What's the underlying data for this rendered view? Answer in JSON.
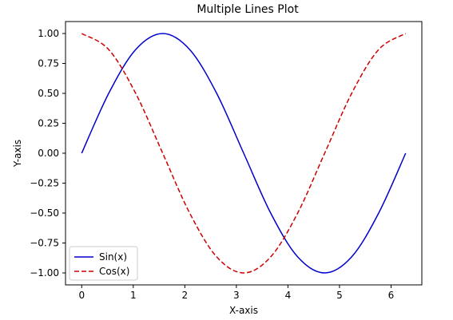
{
  "chart_data": {
    "type": "line",
    "title": "Multiple Lines Plot",
    "xlabel": "X-axis",
    "ylabel": "Y-axis",
    "xlim": [
      -0.314,
      6.597
    ],
    "ylim": [
      -1.1,
      1.1
    ],
    "x_ticks": [
      0,
      1,
      2,
      3,
      4,
      5,
      6
    ],
    "x_tick_labels": [
      "0",
      "1",
      "2",
      "3",
      "4",
      "5",
      "6"
    ],
    "y_ticks": [
      1.0,
      0.75,
      0.5,
      0.25,
      0.0,
      -0.25,
      -0.5,
      -0.75,
      -1.0
    ],
    "y_tick_labels": [
      "1.00",
      "0.75",
      "0.50",
      "0.25",
      "0.00",
      "−0.25",
      "−0.50",
      "−0.75",
      "−1.00"
    ],
    "grid": false,
    "legend_position": "lower-left",
    "series": [
      {
        "name": "Sin(x)",
        "color": "#0000cc",
        "style": "solid",
        "x": [
          0,
          0.5236,
          1.0472,
          1.5708,
          2.0944,
          2.618,
          3.1416,
          3.6652,
          4.1888,
          4.7124,
          5.236,
          5.7596,
          6.2832
        ],
        "values": [
          0,
          0.5,
          0.866,
          1.0,
          0.866,
          0.5,
          0,
          -0.5,
          -0.866,
          -1.0,
          -0.866,
          -0.5,
          0
        ]
      },
      {
        "name": "Cos(x)",
        "color": "#cc0000",
        "style": "dashed",
        "x": [
          0,
          0.5236,
          1.0472,
          1.5708,
          2.0944,
          2.618,
          3.1416,
          3.6652,
          4.1888,
          4.7124,
          5.236,
          5.7596,
          6.2832
        ],
        "values": [
          1.0,
          0.866,
          0.5,
          0,
          -0.5,
          -0.866,
          -1.0,
          -0.866,
          -0.5,
          0,
          0.5,
          0.866,
          1.0
        ]
      }
    ]
  }
}
